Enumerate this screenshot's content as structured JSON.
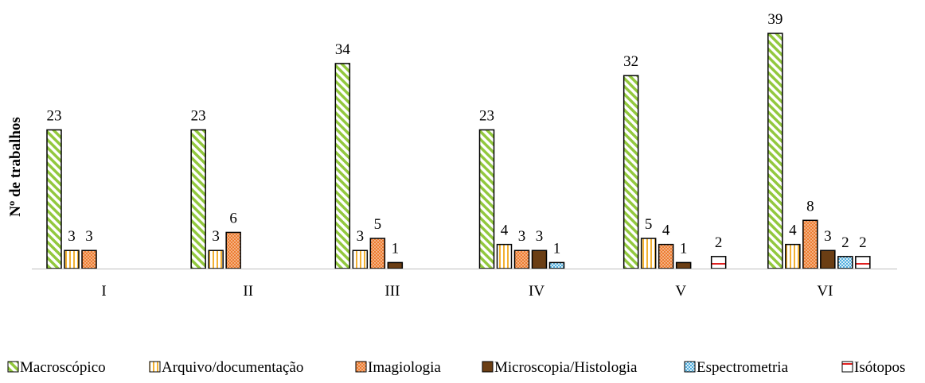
{
  "chart_data": {
    "type": "bar",
    "title": "",
    "xlabel": "",
    "ylabel": "Nº de trabalhos",
    "categories": [
      "I",
      "II",
      "III",
      "IV",
      "V",
      "VI"
    ],
    "ylim": [
      0,
      39
    ],
    "grid": false,
    "legend_position": "bottom",
    "series": [
      {
        "name": "Macroscópico",
        "pattern": "diagonal-stripes",
        "color": "#92C83E",
        "values": [
          23,
          23,
          34,
          23,
          32,
          39
        ]
      },
      {
        "name": "Arquivo/documentação",
        "pattern": "vertical-stripes",
        "color": "#F2B133",
        "values": [
          3,
          3,
          3,
          4,
          5,
          4
        ]
      },
      {
        "name": "Imagiologia",
        "pattern": "dots",
        "color": "#ED7D31",
        "values": [
          3,
          6,
          5,
          3,
          4,
          8
        ]
      },
      {
        "name": "Microscopia/Histologia",
        "pattern": "solid",
        "color": "#6B3E14",
        "values": [
          null,
          null,
          1,
          3,
          1,
          3
        ]
      },
      {
        "name": "Espectrometria",
        "pattern": "crosshatch",
        "color": "#2E9FD8",
        "values": [
          null,
          null,
          null,
          1,
          null,
          2
        ]
      },
      {
        "name": "Isótopos",
        "pattern": "horizontal-line",
        "color": "#E02020",
        "values": [
          null,
          null,
          null,
          null,
          2,
          2
        ]
      }
    ]
  }
}
